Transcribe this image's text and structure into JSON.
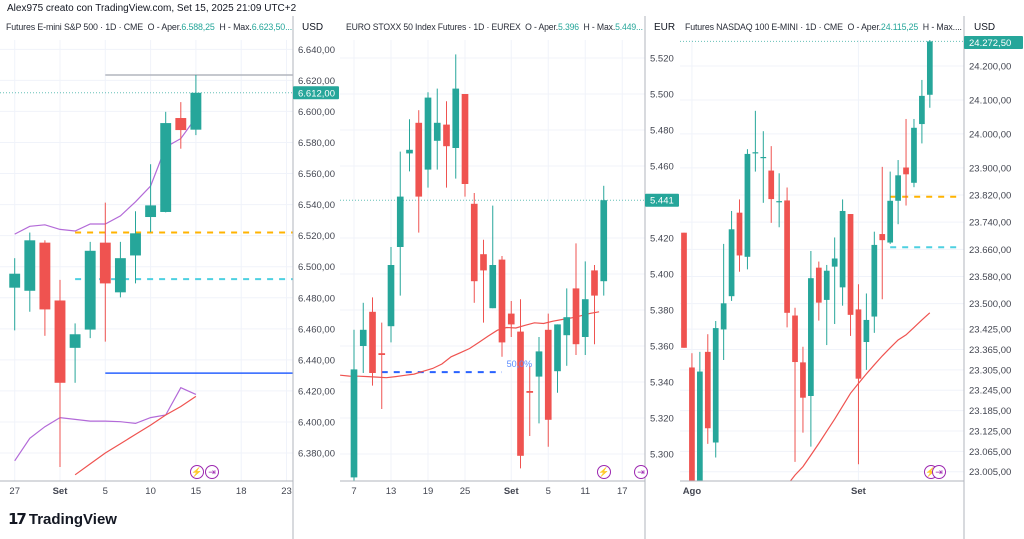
{
  "header": {
    "attribution": "Alex975 creato con TradingView.com, Set 15, 2025 21:09 UTC+2"
  },
  "logo": {
    "text": "TradingView"
  },
  "panels": [
    {
      "title": "Futures E-mini S&P 500 · 1D · CME",
      "open_label": "O - Aper.",
      "open_value": "6.588,25",
      "high_label": "H - Max.",
      "high_value": "6.623,50...",
      "currency": "USD"
    },
    {
      "title": "EURO STOXX 50 Index Futures · 1D · EUREX",
      "open_label": "O - Aper.",
      "open_value": "5.396",
      "high_label": "H - Max.",
      "high_value": "5.449...",
      "currency": "EUR"
    },
    {
      "title": "Futures NASDAQ 100 E-MINI · 1D · CME",
      "open_label": "O - Aper.",
      "open_value": "24.115,25",
      "high_label": "H - Max....",
      "high_value": "",
      "currency": "USD"
    }
  ],
  "icons": [
    "lightning-icon",
    "arrow-right-icon"
  ],
  "colors": {
    "up": "#26a69a",
    "down": "#ef5350",
    "grid": "#f0f3fa",
    "ma": "#ef5350",
    "envelope": "#b36ad8",
    "orange_level": "#ffb300",
    "cyan_level": "#4dd0e1",
    "blue_level": "#2962ff",
    "gray_level": "#b2b5be"
  },
  "chart_data": [
    {
      "type": "candlestick",
      "ylim": [
        6362,
        6646
      ],
      "yticks": [
        {
          "value": 6640,
          "label": "6.640,00"
        },
        {
          "value": 6620,
          "label": "6.620,00"
        },
        {
          "value": 6600,
          "label": "6.600,00"
        },
        {
          "value": 6580,
          "label": "6.580,00"
        },
        {
          "value": 6560,
          "label": "6.560,00"
        },
        {
          "value": 6540,
          "label": "6.540,00"
        },
        {
          "value": 6520,
          "label": "6.520,00"
        },
        {
          "value": 6500,
          "label": "6.500,00"
        },
        {
          "value": 6480,
          "label": "6.480,00"
        },
        {
          "value": 6460,
          "label": "6.460,00"
        },
        {
          "value": 6440,
          "label": "6.440,00"
        },
        {
          "value": 6420,
          "label": "6.420,00"
        },
        {
          "value": 6400,
          "label": "6.400,00"
        },
        {
          "value": 6380,
          "label": "6.380,00"
        }
      ],
      "xticks": [
        {
          "index": 0,
          "label": "27"
        },
        {
          "index": 3,
          "label": "Set"
        },
        {
          "index": 6,
          "label": "5"
        },
        {
          "index": 9,
          "label": "10"
        },
        {
          "index": 12,
          "label": "15"
        },
        {
          "index": 15,
          "label": "18"
        },
        {
          "index": 18,
          "label": "23"
        }
      ],
      "candles_ohlc": [
        [
          6486.5,
          6505.5,
          6459,
          6495.5
        ],
        [
          6484.5,
          6522,
          6471,
          6517
        ],
        [
          6515.5,
          6517,
          6455.5,
          6472.5
        ],
        [
          6478.25,
          6491.5,
          6371,
          6425.25
        ],
        [
          6447.75,
          6463.5,
          6425.25,
          6456.5
        ],
        [
          6459.5,
          6516,
          6454,
          6510.25
        ],
        [
          6515.5,
          6541.25,
          6451.75,
          6489.25
        ],
        [
          6483.5,
          6516,
          6480.25,
          6505.5
        ],
        [
          6507.25,
          6535.75,
          6489.25,
          6521.5
        ],
        [
          6532,
          6566,
          6522.25,
          6539.5
        ],
        [
          6535.25,
          6599.75,
          6535,
          6592.5
        ],
        [
          6595.75,
          6606,
          6576,
          6588
        ],
        [
          6588.25,
          6623.5,
          6584.75,
          6612
        ]
      ],
      "last_price": {
        "value": 6612,
        "label": "6.612,00"
      },
      "levels": [
        {
          "value": 6623.5,
          "color": "#b2b5be",
          "style": "solid",
          "from": 6,
          "to": null
        },
        {
          "value": 6431.5,
          "color": "#2962ff",
          "style": "solid",
          "from": 6,
          "to": null
        },
        {
          "value": 6522,
          "color": "#ffb300",
          "style": "dashed",
          "from": 4,
          "to": 23.5
        },
        {
          "value": 6492,
          "color": "#4dd0e1",
          "style": "dashed",
          "from": 4,
          "to": 23.5
        }
      ],
      "indicators": [
        {
          "color": "#b36ad8",
          "start": 0,
          "values": [
            6521,
            6526,
            6527,
            6524,
            6523,
            6527.5,
            6527.5,
            6532.7,
            6541.8,
            6552,
            6577,
            6582.5,
            6596
          ]
        },
        {
          "color": "#b36ad8",
          "start": 0,
          "values": [
            6375,
            6389.5,
            6397,
            6402.8,
            6401.7,
            6400.6,
            6400.6,
            6400.2,
            6399.1,
            6402.8,
            6404.5,
            6422.1,
            6417.8
          ]
        },
        {
          "color": "#ef5350",
          "start": 4,
          "values": [
            6366,
            6373,
            6380,
            6386,
            6392,
            6398,
            6404.5,
            6410,
            6416.5
          ]
        }
      ]
    },
    {
      "type": "candlestick",
      "ylim": [
        5.285,
        5.53
      ],
      "yticks": [
        {
          "value": 5.52,
          "label": "5.520"
        },
        {
          "value": 5.5,
          "label": "5.500"
        },
        {
          "value": 5.48,
          "label": "5.480"
        },
        {
          "value": 5.46,
          "label": "5.460"
        },
        {
          "value": 5.42,
          "label": "5.420"
        },
        {
          "value": 5.4,
          "label": "5.400"
        },
        {
          "value": 5.38,
          "label": "5.380"
        },
        {
          "value": 5.36,
          "label": "5.360"
        },
        {
          "value": 5.34,
          "label": "5.340"
        },
        {
          "value": 5.32,
          "label": "5.320"
        },
        {
          "value": 5.3,
          "label": "5.300"
        }
      ],
      "xticks": [
        {
          "index": 0,
          "label": "7"
        },
        {
          "index": 4,
          "label": "13"
        },
        {
          "index": 8,
          "label": "19"
        },
        {
          "index": 12,
          "label": "25"
        },
        {
          "index": 17,
          "label": "Set"
        },
        {
          "index": 21,
          "label": "5"
        },
        {
          "index": 25,
          "label": "11"
        },
        {
          "index": 29,
          "label": "17"
        }
      ],
      "candles_ohlc": [
        [
          5.287,
          5.369,
          5.284,
          5.347
        ],
        [
          5.36,
          5.384,
          5.345,
          5.369
        ],
        [
          5.379,
          5.387,
          5.338,
          5.345
        ],
        [
          5.356,
          5.373,
          5.325,
          5.355
        ],
        [
          5.371,
          5.415,
          5.362,
          5.405
        ],
        [
          5.415,
          5.468,
          5.388,
          5.443
        ],
        [
          5.467,
          5.486,
          5.457,
          5.469
        ],
        [
          5.484,
          5.491,
          5.423,
          5.443
        ],
        [
          5.458,
          5.501,
          5.448,
          5.498
        ],
        [
          5.474,
          5.503,
          5.458,
          5.484
        ],
        [
          5.483,
          5.496,
          5.448,
          5.471
        ],
        [
          5.47,
          5.522,
          5.453,
          5.503
        ],
        [
          5.5,
          5.5,
          5.443,
          5.45
        ],
        [
          5.439,
          5.445,
          5.384,
          5.396
        ],
        [
          5.411,
          5.419,
          5.373,
          5.402
        ],
        [
          5.381,
          5.438,
          5.381,
          5.405
        ],
        [
          5.408,
          5.41,
          5.354,
          5.362
        ],
        [
          5.378,
          5.385,
          5.365,
          5.372
        ],
        [
          5.368,
          5.386,
          5.292,
          5.299
        ],
        [
          5.335,
          5.349,
          5.31,
          5.334
        ],
        [
          5.343,
          5.365,
          5.317,
          5.357
        ],
        [
          5.369,
          5.378,
          5.304,
          5.319
        ],
        [
          5.346,
          5.372,
          5.334,
          5.372
        ],
        [
          5.366,
          5.392,
          5.349,
          5.376
        ],
        [
          5.392,
          5.417,
          5.355,
          5.361
        ],
        [
          5.365,
          5.407,
          5.355,
          5.386
        ],
        [
          5.402,
          5.405,
          5.361,
          5.388
        ],
        [
          5.396,
          5.449,
          5.388,
          5.441
        ]
      ],
      "last_price": {
        "value": 5.441,
        "label": "5.441"
      },
      "levels": [
        {
          "value": 5.3455,
          "color": "#2962ff",
          "style": "dashed",
          "from": 3,
          "to": 16
        }
      ],
      "annotation": {
        "label": "50,0%",
        "index": 16.5,
        "value": 5.35,
        "color": "#5b8cff"
      },
      "indicators": [
        {
          "color": "#ef5350",
          "start": -1.5,
          "values": [
            5.3438,
            5.3433,
            5.3432,
            5.343,
            5.3427,
            5.3424,
            5.343,
            5.3437,
            5.3444,
            5.346,
            5.3475,
            5.35,
            5.354,
            5.3563,
            5.3586,
            5.362,
            5.3655,
            5.3688,
            5.3703,
            5.37,
            5.3715,
            5.3729,
            5.3725,
            5.3738,
            5.3747,
            5.3756,
            5.3768,
            5.3781,
            5.379
          ]
        }
      ]
    },
    {
      "type": "candlestick",
      "ylim": [
        22977.6,
        24276.6
      ],
      "yticks": [
        {
          "value": 24200,
          "label": "24.200,00"
        },
        {
          "value": 24100,
          "label": "24.100,00"
        },
        {
          "value": 24000,
          "label": "24.000,00"
        },
        {
          "value": 23900,
          "label": "23.900,00"
        },
        {
          "value": 23820,
          "label": "23.820,00"
        },
        {
          "value": 23740,
          "label": "23.740,00"
        },
        {
          "value": 23660,
          "label": "23.660,00"
        },
        {
          "value": 23580,
          "label": "23.580,00"
        },
        {
          "value": 23500,
          "label": "23.500,00"
        },
        {
          "value": 23425,
          "label": "23.425,00"
        },
        {
          "value": 23365,
          "label": "23.365,00"
        },
        {
          "value": 23305,
          "label": "23.305,00"
        },
        {
          "value": 23245,
          "label": "23.245,00"
        },
        {
          "value": 23185,
          "label": "23.185,00"
        },
        {
          "value": 23125,
          "label": "23.125,00"
        },
        {
          "value": 23065,
          "label": "23.065,00"
        },
        {
          "value": 23005,
          "label": "23.005,00"
        }
      ],
      "xticks": [
        {
          "index": 1,
          "label": "Ago"
        },
        {
          "index": 22,
          "label": "Set"
        }
      ],
      "candles_ohlc": [
        [
          23709,
          23709,
          23370,
          23370
        ],
        [
          23312,
          23354,
          22978,
          22978
        ],
        [
          22978,
          23358,
          22978,
          23300
        ],
        [
          23358,
          23410,
          23087,
          23133
        ],
        [
          23091,
          23449,
          23047,
          23428
        ],
        [
          23424,
          23676,
          23334,
          23501
        ],
        [
          23522,
          23773,
          23508,
          23719
        ],
        [
          23768,
          23807,
          23594,
          23642
        ],
        [
          23638,
          23955,
          23601,
          23941
        ],
        [
          23944,
          24068,
          23889,
          23946
        ],
        [
          23930,
          24008,
          23797,
          23932
        ],
        [
          23892,
          23964,
          23738,
          23808
        ],
        [
          23800,
          23884,
          23725,
          23802
        ],
        [
          23804,
          23842,
          23430,
          23473
        ],
        [
          23465,
          23488,
          23034,
          23328
        ],
        [
          23327,
          23373,
          23120,
          23223
        ],
        [
          23228,
          23655,
          23079,
          23575
        ],
        [
          23606,
          23624,
          23450,
          23503
        ],
        [
          23511,
          23614,
          23378,
          23597
        ],
        [
          23609,
          23695,
          23440,
          23633
        ],
        [
          23548,
          23807,
          23494,
          23773
        ],
        [
          23764,
          23764,
          23405,
          23467
        ],
        [
          23483,
          23557,
          23027,
          23279
        ],
        [
          23387,
          23530,
          23305,
          23452
        ],
        [
          23462,
          23712,
          23414,
          23673
        ],
        [
          23705,
          23903,
          23513,
          23687
        ],
        [
          23680,
          23889,
          23676,
          23803
        ],
        [
          23803,
          23923,
          23734,
          23878
        ],
        [
          23901,
          24044,
          23789,
          23881
        ],
        [
          23856,
          24044,
          23843,
          24018
        ],
        [
          24029,
          24159,
          23972,
          24112
        ],
        [
          24115.25,
          24285,
          24077,
          24272.5
        ]
      ],
      "last_price": {
        "value": 24272.5,
        "label": "24.272,50"
      },
      "levels": [
        {
          "value": 23815,
          "color": "#ffb300",
          "style": "dashed",
          "from": 26,
          "to": 34.5
        },
        {
          "value": 23666,
          "color": "#4dd0e1",
          "style": "dashed",
          "from": 26,
          "to": 34.5
        }
      ],
      "indicators": [
        {
          "color": "#ef5350",
          "start": 13,
          "values": [
            22965,
            22995,
            23020,
            23054,
            23088,
            23124,
            23160,
            23198,
            23236,
            23265,
            23293,
            23320,
            23346,
            23370,
            23393,
            23408,
            23430,
            23452,
            23473
          ]
        }
      ]
    }
  ]
}
